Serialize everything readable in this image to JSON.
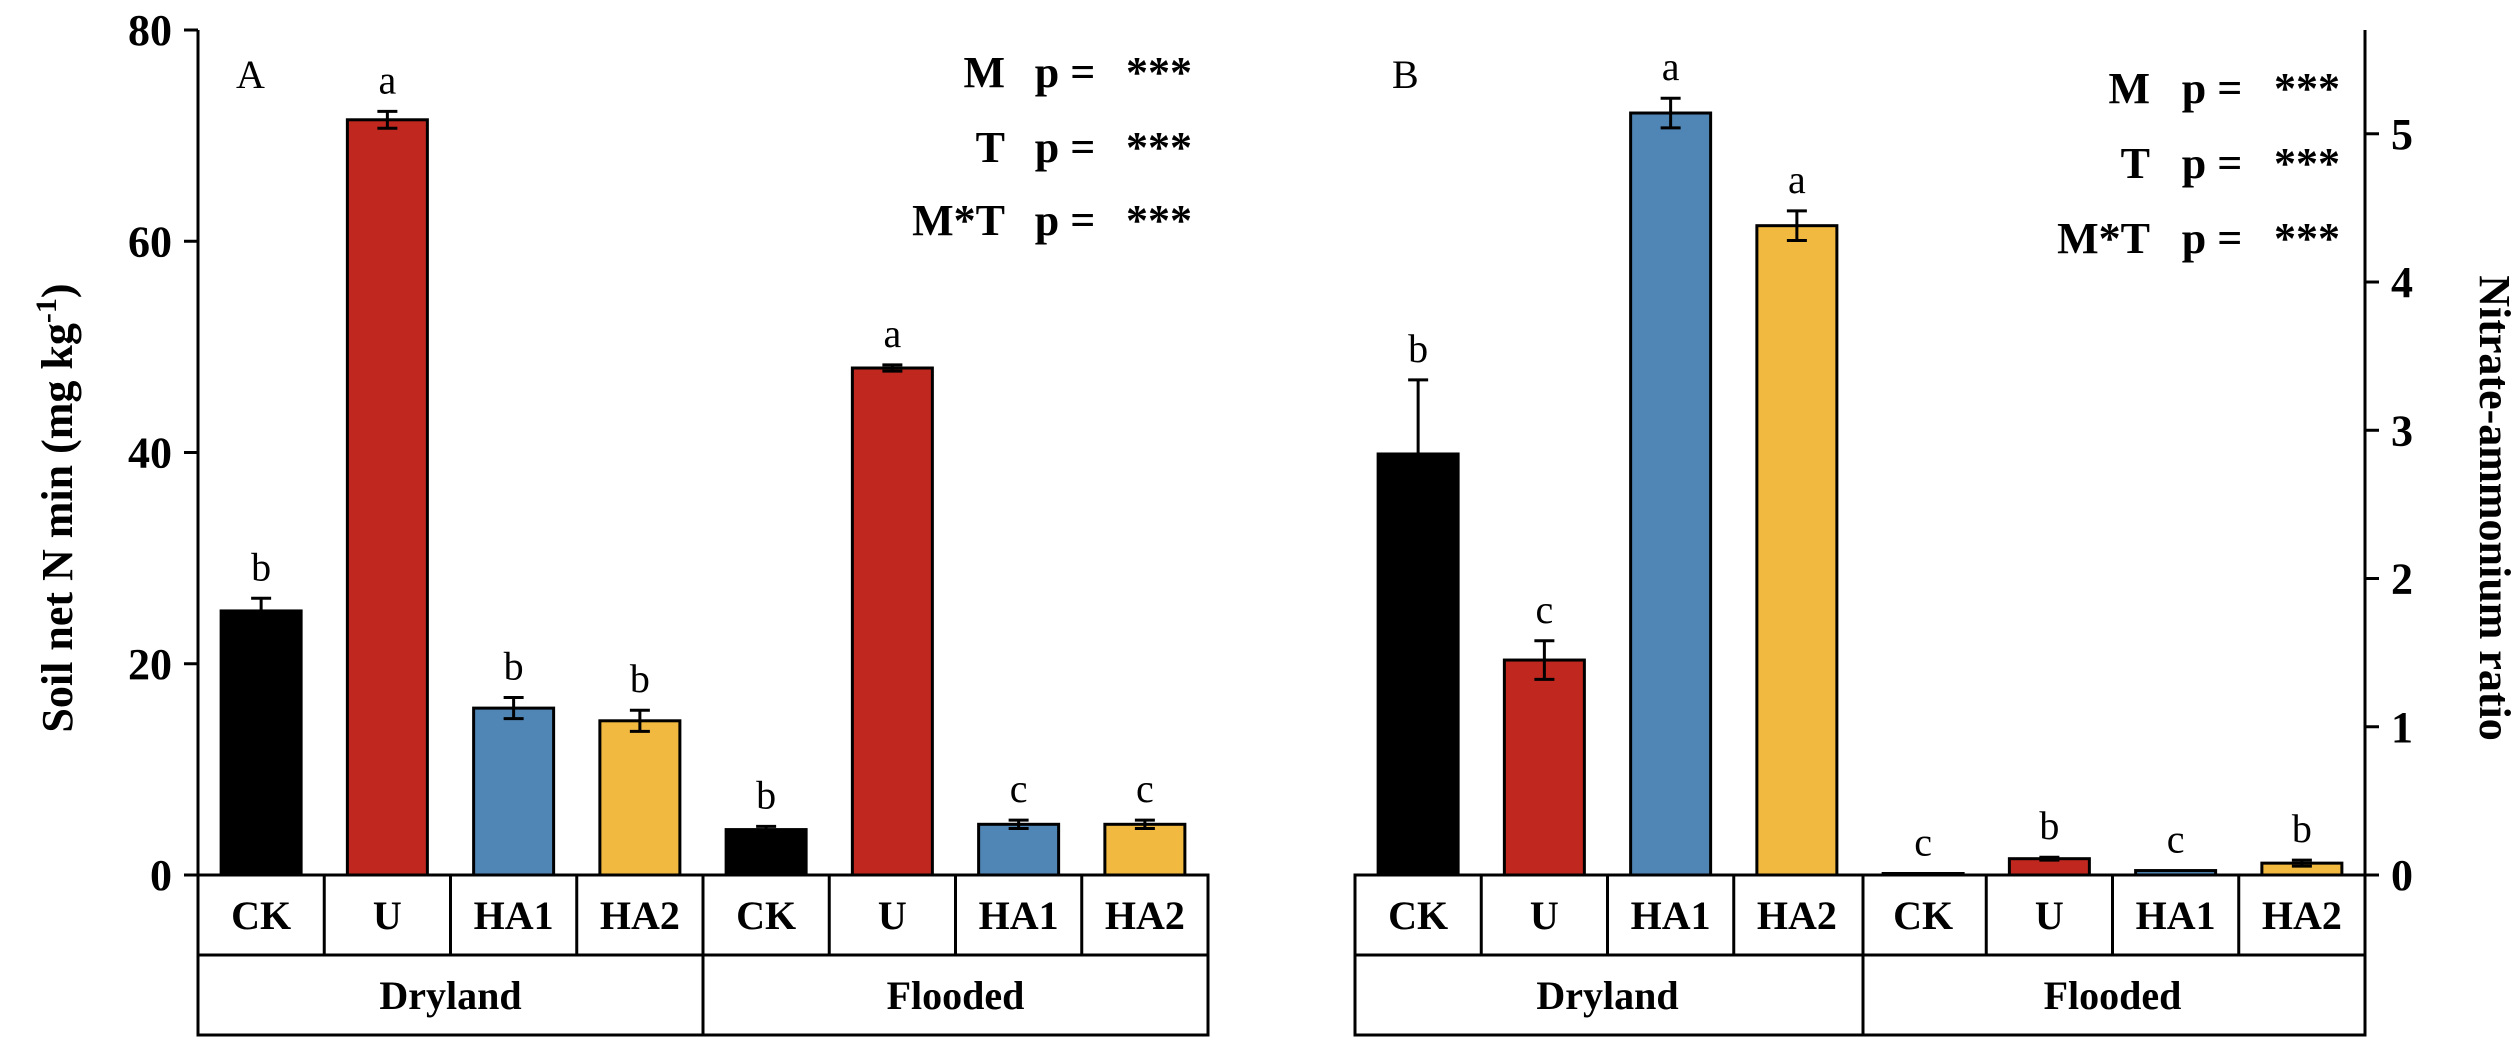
{
  "colors": {
    "CK": "#000000",
    "U": "#c0281f",
    "HA1": "#4f86b6",
    "HA2": "#f2b940"
  },
  "chart_data": [
    {
      "id": "A",
      "type": "bar",
      "panel_label": "A",
      "ylabel": "Soil net N min (mg kg-1)",
      "ylabel_main": "Soil net N min (mg kg",
      "ylabel_sup": "-1",
      "ylabel_close": ")",
      "ylim": [
        0,
        80
      ],
      "yticks": [
        0,
        20,
        40,
        60,
        80
      ],
      "axis_side": "left",
      "groups": [
        "Dryland",
        "Flooded"
      ],
      "categories": [
        "CK",
        "U",
        "HA1",
        "HA2"
      ],
      "series": [
        {
          "group": "Dryland",
          "values": [
            25.0,
            71.5,
            15.8,
            14.6
          ],
          "errors": [
            1.2,
            0.8,
            1.0,
            1.0
          ],
          "letters": [
            "b",
            "a",
            "b",
            "b"
          ]
        },
        {
          "group": "Flooded",
          "values": [
            4.3,
            48.0,
            4.8,
            4.8
          ],
          "errors": [
            0.3,
            0.3,
            0.4,
            0.4
          ],
          "letters": [
            "b",
            "a",
            "c",
            "c"
          ]
        }
      ],
      "stats": [
        {
          "label": "M",
          "p": "p =",
          "value": "***"
        },
        {
          "label": "T",
          "p": "p =",
          "value": "***"
        },
        {
          "label": "M*T",
          "p": "p =",
          "value": "***"
        }
      ]
    },
    {
      "id": "B",
      "type": "bar",
      "panel_label": "B",
      "ylabel": "Nitrate-ammonium ratio",
      "ylabel_main": "Nitrate-ammonium ratio",
      "ylabel_sup": "",
      "ylabel_close": "",
      "ylim": [
        0,
        5.7
      ],
      "yticks": [
        0,
        1,
        2,
        3,
        4,
        5
      ],
      "axis_side": "right",
      "groups": [
        "Dryland",
        "Flooded"
      ],
      "categories": [
        "CK",
        "U",
        "HA1",
        "HA2"
      ],
      "series": [
        {
          "group": "Dryland",
          "values": [
            2.84,
            1.45,
            5.14,
            4.38
          ],
          "errors": [
            0.5,
            0.13,
            0.1,
            0.1
          ],
          "letters": [
            "b",
            "c",
            "a",
            "a"
          ]
        },
        {
          "group": "Flooded",
          "values": [
            0.01,
            0.11,
            0.03,
            0.08
          ],
          "errors": [
            0.0,
            0.01,
            0.0,
            0.02
          ],
          "letters": [
            "c",
            "b",
            "c",
            "b"
          ]
        }
      ],
      "stats": [
        {
          "label": "M",
          "p": "p =",
          "value": "***"
        },
        {
          "label": "T",
          "p": "p =",
          "value": "***"
        },
        {
          "label": "M*T",
          "p": "p =",
          "value": "***"
        }
      ]
    }
  ]
}
